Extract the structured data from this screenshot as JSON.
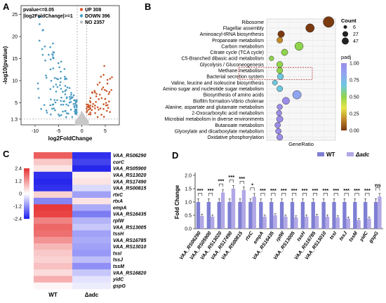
{
  "panels": {
    "a": "A",
    "b": "B",
    "c": "C",
    "d": "D"
  },
  "chart_data": [
    {
      "panel": "A",
      "type": "scatter",
      "title": "",
      "xlabel": "log2FoldChange",
      "ylabel": "-log10(pvalue)",
      "xlim": [
        -13,
        8
      ],
      "ylim": [
        0,
        27
      ],
      "xticks": [
        "-10",
        "-5",
        "0",
        "5"
      ],
      "yticks": [
        "1.3",
        "5",
        "10",
        "15",
        "20",
        "25"
      ],
      "threshold_text": [
        "pvalue<=0.05",
        "|log2FoldChange|>=1"
      ],
      "threshold_lines": {
        "y": 1.3,
        "x": [
          -1,
          1
        ]
      },
      "legend": [
        {
          "label": "UP 308",
          "color": "#e0522b"
        },
        {
          "label": "DOWN 396",
          "color": "#3c9dc4"
        },
        {
          "label": "NO 2357",
          "color": "#bdbdbd"
        }
      ],
      "colors": {
        "up": "#c9582c",
        "down": "#4a9bc2",
        "no": "#c8c8c8"
      }
    },
    {
      "panel": "B",
      "type": "scatter",
      "xlabel": "GeneRatio",
      "ylabel": "",
      "xlim": [
        0,
        1
      ],
      "categories": [
        "Ribosome",
        "Flagellar assembly",
        "Aminoacyl-tRNA biosynthesis",
        "Propanoate metabolism",
        "Carbon metabolism",
        "Citrate cycle (TCA cycle)",
        "C5-Branched dibasic acid metabolism",
        "Glycolysis / Gluconeogenesis",
        "Methane metabolism",
        "Bacterial secretion system",
        "Valine, leucine and isoleucine biosynthesis",
        "Amino sugar and nucleotide sugar metabolism",
        "Biosynthesis of amino acids",
        "Biofilm formation-Vibrio cholerae",
        "Alanine, aspartate and glutamate metabolism",
        "2-Oxocarboxylic acid metabolism",
        "Microbial metabolism in diverse environments",
        "Butanoate metabolism",
        "Glyoxylate and dicarboxylate metabolism",
        "Oxidative phosphorylation"
      ],
      "points": [
        {
          "x": 0.9,
          "count": 47,
          "padj": 0.02
        },
        {
          "x": 0.63,
          "count": 27,
          "padj": 0.05
        },
        {
          "x": 0.21,
          "count": 14,
          "padj": 0.1
        },
        {
          "x": 0.19,
          "count": 10,
          "padj": 0.22
        },
        {
          "x": 0.47,
          "count": 25,
          "padj": 0.55
        },
        {
          "x": 0.26,
          "count": 13,
          "padj": 0.45
        },
        {
          "x": 0.07,
          "count": 5,
          "padj": 0.5
        },
        {
          "x": 0.19,
          "count": 11,
          "padj": 0.57
        },
        {
          "x": 0.19,
          "count": 10,
          "padj": 0.55
        },
        {
          "x": 0.2,
          "count": 11,
          "padj": 0.6
        },
        {
          "x": 0.12,
          "count": 6,
          "padj": 0.58
        },
        {
          "x": 0.19,
          "count": 10,
          "padj": 0.62
        },
        {
          "x": 0.44,
          "count": 27,
          "padj": 0.85
        },
        {
          "x": 0.28,
          "count": 17,
          "padj": 0.88
        },
        {
          "x": 0.19,
          "count": 8,
          "padj": 0.92
        },
        {
          "x": 0.18,
          "count": 8,
          "padj": 0.93
        },
        {
          "x": 0.19,
          "count": 13,
          "padj": 0.95
        },
        {
          "x": 0.16,
          "count": 9,
          "padj": 0.95
        },
        {
          "x": 0.17,
          "count": 9,
          "padj": 0.97
        },
        {
          "x": 0.19,
          "count": 11,
          "padj": 0.98
        }
      ],
      "highlight_rows": [
        "Methane metabolism",
        "Bacterial secretion system"
      ],
      "size_legend": {
        "title": "Count",
        "values": [
          "6",
          "27",
          "47"
        ]
      },
      "color_legend": {
        "title": "padj",
        "ticks": [
          "0.25",
          "0.50",
          "0.75",
          "1.00"
        ],
        "min_label": "0.00",
        "colors": [
          "#7b3a10",
          "#c08a2a",
          "#e6e64a",
          "#8fd44a",
          "#6ec7e0",
          "#8fa5f0",
          "#9b8de8"
        ]
      }
    },
    {
      "panel": "C",
      "type": "heatmap",
      "columns": [
        "WT",
        "Δadc"
      ],
      "rows": [
        "VAA_RS06290",
        "corC",
        "VAA_RS05900",
        "VAA_RS13020",
        "VAA_RS17490",
        "VAA_RS00815",
        "rtxC",
        "rtxA",
        "empA",
        "VAA_RS16435",
        "rplW",
        "VAA_RS13005",
        "tssH",
        "VAA_RS16785",
        "VAA_RS13010",
        "tssI",
        "tssJ",
        "tssM",
        "VAA_RS16820",
        "yidC",
        "gspG"
      ],
      "values": [
        [
          1.8,
          -2.2
        ],
        [
          0.6,
          -2.0
        ],
        [
          0.3,
          -2.3
        ],
        [
          -2.2,
          0.2
        ],
        [
          -2.3,
          0.3
        ],
        [
          -2.2,
          -0.4
        ],
        [
          0.5,
          -1.0
        ],
        [
          -1.3,
          0.3
        ],
        [
          2.2,
          -0.9
        ],
        [
          2.1,
          -1.4
        ],
        [
          1.4,
          -0.8
        ],
        [
          1.7,
          -0.6
        ],
        [
          1.6,
          -1.0
        ],
        [
          1.2,
          -0.9
        ],
        [
          0.8,
          -1.0
        ],
        [
          0.6,
          -1.1
        ],
        [
          0.5,
          -0.7
        ],
        [
          0.7,
          -1.2
        ],
        [
          0.4,
          -0.6
        ],
        [
          0.9,
          -0.3
        ],
        [
          0.1,
          -0.2
        ]
      ],
      "scale_ticks": [
        "2.4",
        "1.2",
        "0",
        "-1.2",
        "-2.4"
      ]
    },
    {
      "panel": "D",
      "type": "bar",
      "ylabel": "Fold Change",
      "ylim": [
        0,
        2.0
      ],
      "yticks": [
        "0.0",
        "0.5",
        "1.0",
        "1.5",
        "2.0"
      ],
      "categories": [
        "VAA_RS06290",
        "VAA_RS05900",
        "VAA_RS13020",
        "VAA_RS17490",
        "VAA_RS00815",
        "rtxC",
        "empA",
        "VAA_RS16435",
        "rplW",
        "VAA_RS13005",
        "tssH",
        "VAA_RS16785",
        "VAA_RS13010",
        "tssI",
        "tssJ",
        "tssM",
        "yidC",
        "gspG"
      ],
      "series": [
        {
          "name": "WT",
          "color": "#7f7fd4",
          "values": [
            1.0,
            1.0,
            1.0,
            1.0,
            1.0,
            1.0,
            1.0,
            1.0,
            1.0,
            1.0,
            1.0,
            1.0,
            1.0,
            1.0,
            1.0,
            1.0,
            1.0,
            1.0
          ]
        },
        {
          "name": "Δadc",
          "color": "#b2a8e6",
          "values": [
            0.48,
            0.45,
            1.35,
            1.5,
            1.45,
            1.2,
            0.45,
            0.5,
            0.45,
            0.42,
            0.45,
            0.48,
            0.45,
            0.42,
            0.38,
            0.32,
            0.38,
            1.2
          ]
        }
      ],
      "significance": [
        "***",
        "***",
        "***",
        "***",
        "***",
        "*",
        "***",
        "***",
        "***",
        "***",
        "***",
        "***",
        "***",
        "***",
        "***",
        "***",
        "***",
        "ns"
      ]
    }
  ]
}
